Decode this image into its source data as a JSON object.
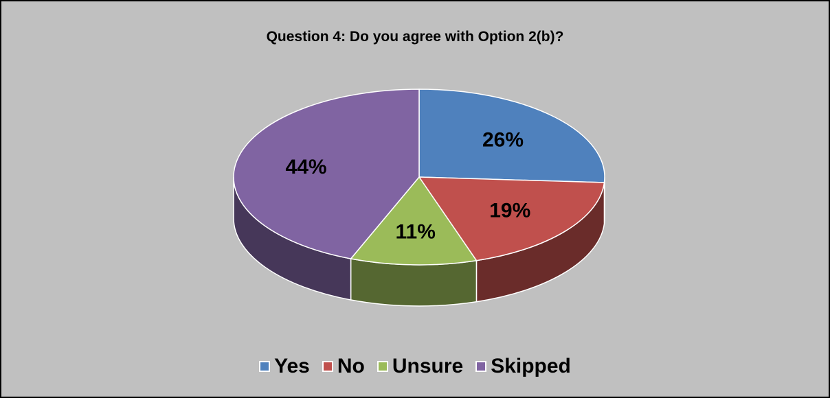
{
  "chart_data": {
    "type": "pie",
    "title": "Question 4: Do you agree with Option 2(b)?",
    "categories": [
      "Yes",
      "No",
      "Unsure",
      "Skipped"
    ],
    "values": [
      26,
      19,
      11,
      44
    ],
    "labels": [
      "26%",
      "19%",
      "11%",
      "44%"
    ],
    "colors": [
      "#4f81bd",
      "#c0504d",
      "#9bbb59",
      "#8064a2"
    ],
    "legend_position": "bottom",
    "style": "3d"
  }
}
